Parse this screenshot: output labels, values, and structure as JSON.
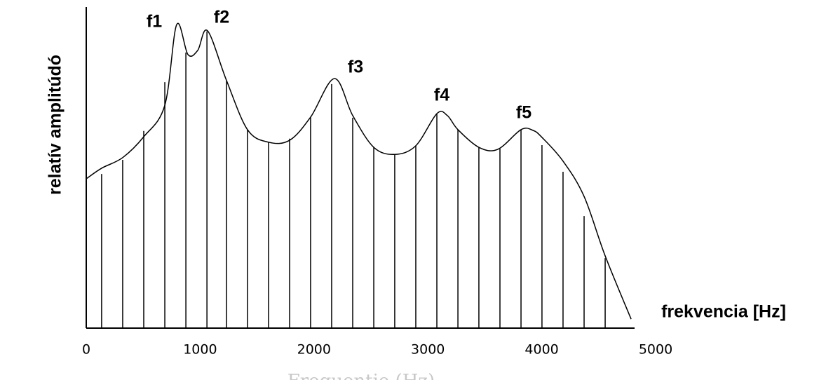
{
  "chart_data": {
    "type": "line",
    "x_label": "frekvencia [Hz]",
    "y_label": "relatív amplitúdó",
    "x_label_faded": "Frequentie (Hz)",
    "xlim": [
      0,
      5000
    ],
    "ylim": [
      0,
      100
    ],
    "xticks": [
      0,
      1000,
      2000,
      3000,
      4000,
      5000
    ],
    "series": [
      {
        "name": "envelope",
        "color": "#000000",
        "x": [
          0,
          135,
          320,
          505,
          690,
          794,
          893,
          979,
          1065,
          1232,
          1416,
          1601,
          1786,
          1970,
          2180,
          2340,
          2525,
          2709,
          2894,
          3079,
          3171,
          3264,
          3448,
          3615,
          3818,
          3922,
          4002,
          4187,
          4372,
          4557,
          4785
        ],
        "values": [
          46.5,
          49.8,
          53.1,
          59.6,
          69.4,
          94.5,
          85.2,
          86.5,
          92.6,
          77.1,
          61.8,
          57.9,
          58.5,
          65.7,
          77.7,
          66.2,
          56.3,
          54.1,
          56.8,
          66.8,
          66.2,
          61.8,
          56.3,
          55.7,
          61.8,
          61.6,
          59.4,
          52.0,
          41.0,
          22.5,
          2.8
        ]
      },
      {
        "name": "harmonics",
        "color": "#000000",
        "x": [
          135,
          320,
          505,
          690,
          875,
          1060,
          1232,
          1416,
          1601,
          1786,
          1970,
          2155,
          2340,
          2525,
          2709,
          2894,
          3079,
          3264,
          3448,
          3633,
          3818,
          4002,
          4187,
          4372,
          4557
        ],
        "values": [
          48.0,
          52.4,
          61.4,
          76.6,
          85.8,
          92.4,
          77.1,
          61.8,
          57.9,
          59.0,
          65.7,
          76.0,
          65.5,
          56.3,
          54.1,
          56.8,
          66.6,
          61.8,
          56.3,
          55.9,
          61.8,
          57.0,
          48.7,
          34.9,
          21.8
        ]
      }
    ],
    "annotations": [
      "f1",
      "f2",
      "f3",
      "f4",
      "f5"
    ]
  }
}
